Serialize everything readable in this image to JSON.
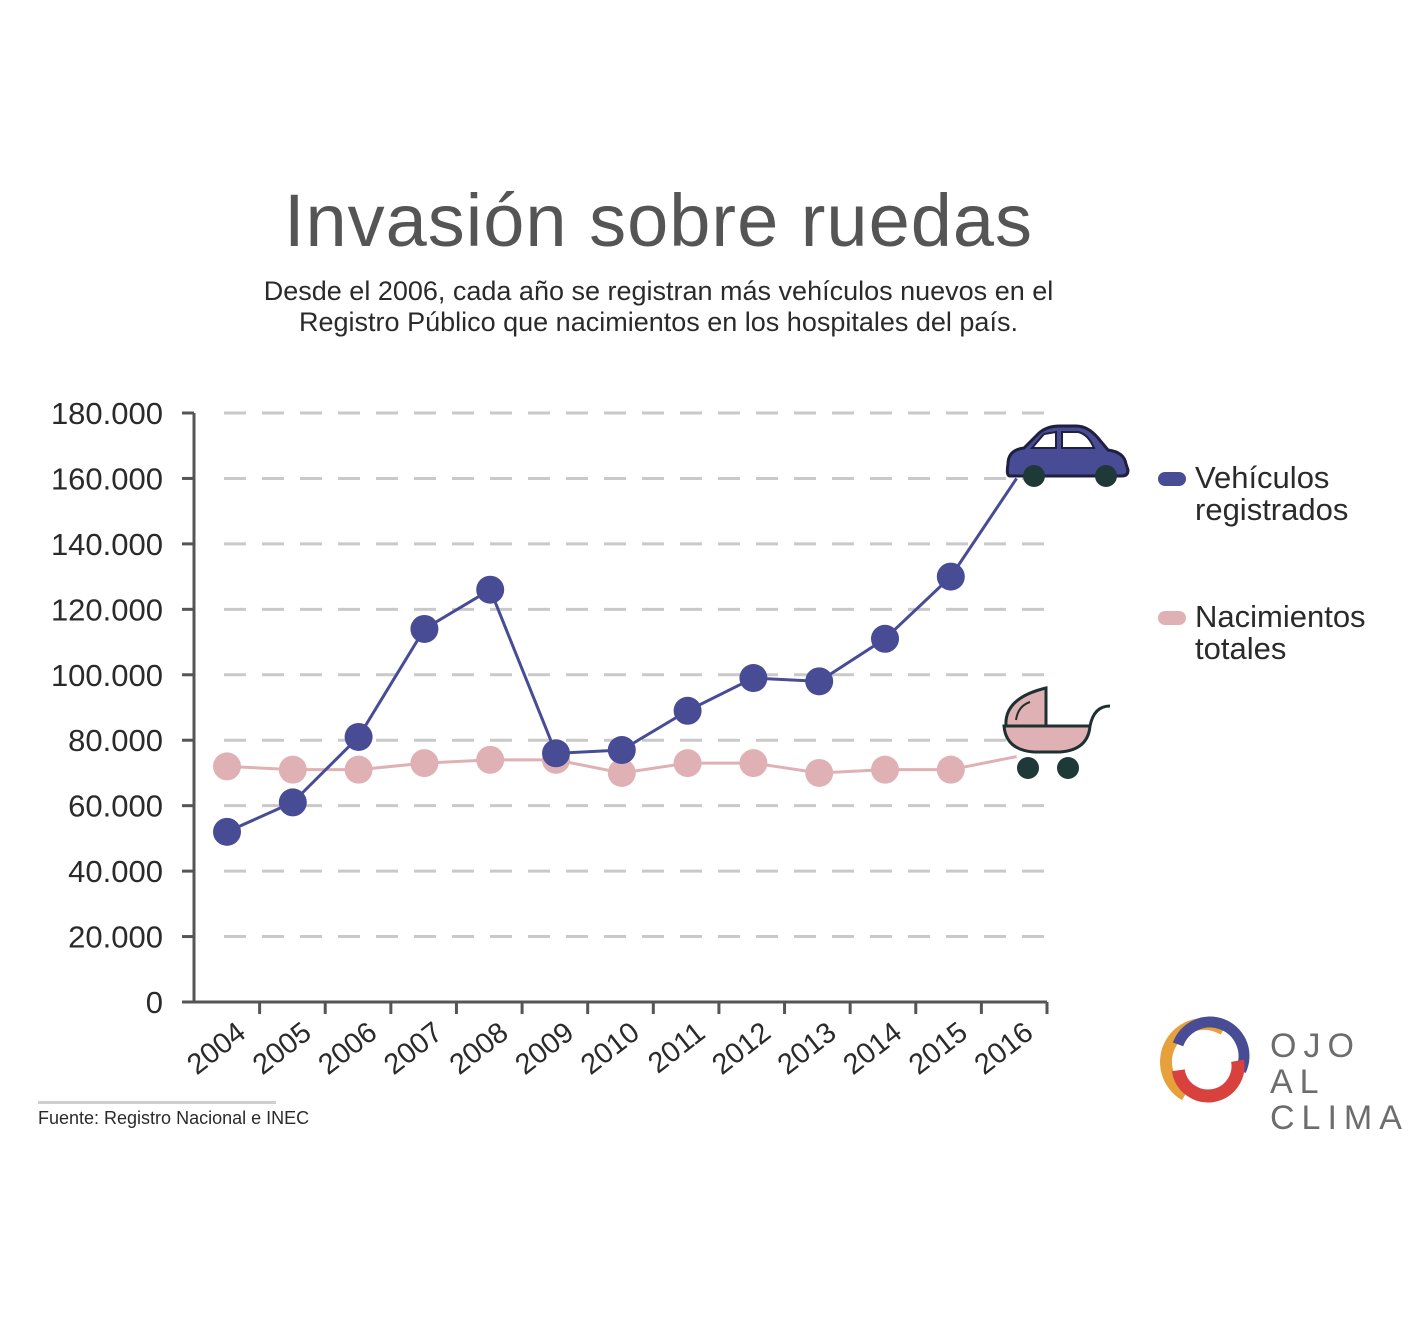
{
  "title": "Invasión sobre ruedas",
  "subtitle_lines": [
    "Desde el 2006, cada año se registran más vehículos nuevos en el",
    "Registro Público que nacimientos en los hospitales del país."
  ],
  "source": "Fuente: Registro Nacional e INEC",
  "logo": {
    "line1": "OJO AL",
    "line2": "CLIMA"
  },
  "icons": {
    "series1": "car-icon",
    "series2": "baby-carriage-icon"
  },
  "colors": {
    "vehicles": "#474c95",
    "births": "#e0b1b4",
    "grid": "#c9c9c9",
    "axis": "#555555",
    "text": "#2a2a2a",
    "logo_orange": "#e6a13a",
    "logo_red": "#d9413f",
    "logo_blue": "#474c95",
    "marker_wheel": "#1f3838"
  },
  "chart_data": {
    "type": "line",
    "x": [
      "2004",
      "2005",
      "2006",
      "2007",
      "2008",
      "2009",
      "2010",
      "2011",
      "2012",
      "2013",
      "2014",
      "2015",
      "2016"
    ],
    "ylim": [
      0,
      180000
    ],
    "yticks": [
      0,
      20000,
      40000,
      60000,
      80000,
      100000,
      120000,
      140000,
      160000,
      180000
    ],
    "ytick_labels": [
      "0",
      "20.000",
      "40.000",
      "60.000",
      "80.000",
      "100.000",
      "120.000",
      "140.000",
      "160.000",
      "180.000"
    ],
    "grid": true,
    "legend_position": "right",
    "series": [
      {
        "name_lines": [
          "Vehículos",
          "registrados"
        ],
        "values": [
          52000,
          61000,
          81000,
          114000,
          126000,
          76000,
          77000,
          89000,
          99000,
          98000,
          111000,
          130000,
          160000
        ]
      },
      {
        "name_lines": [
          "Nacimientos",
          "totales"
        ],
        "values": [
          72000,
          71000,
          71000,
          73000,
          74000,
          74000,
          70000,
          73000,
          73000,
          70000,
          71000,
          71000,
          75000
        ]
      }
    ]
  }
}
